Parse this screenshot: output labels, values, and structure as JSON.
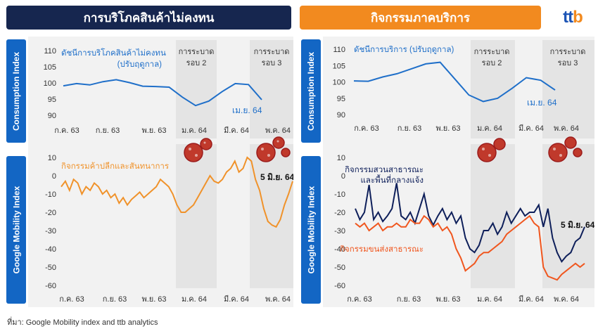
{
  "header": {
    "left_title": "การบริโภคสินค้าไม่คงทน",
    "right_title": "กิจกรรมภาคบริการ"
  },
  "logo": {
    "part1": "tt",
    "part2": "b"
  },
  "side_labels": {
    "consumption": "Consumption Index",
    "mobility": "Google Mobility Index"
  },
  "source": "ที่มา: Google Mobility index and ttb analytics",
  "colors": {
    "navy": "#16264f",
    "orange": "#f28a1f",
    "blue": "#1366c4",
    "line_blue": "#1f6fc9",
    "line_orange": "#f0922a",
    "line_navy": "#0e1f5a",
    "line_red": "#f0561e",
    "panel": "#f2f2f2",
    "shade": "#e4e4e4"
  },
  "chart_data": [
    {
      "id": "goods_consumption",
      "type": "line",
      "x_tick_labels": [
        "ก.ค. 63",
        "ก.ย. 63",
        "พ.ย. 63",
        "ม.ค. 64",
        "มี.ค. 64",
        "พ.ค. 64"
      ],
      "ylim": [
        90,
        110
      ],
      "y_ticks": [
        110,
        105,
        100,
        95,
        90
      ],
      "shaded_periods": [
        {
          "label_line1": "การระบาด",
          "label_line2": "รอบ 2"
        },
        {
          "label_line1": "การระบาด",
          "label_line2": "รอบ 3"
        }
      ],
      "series": [
        {
          "name": "ดัชนีการบริโภคสินค้าไม่คงทน\n(ปรับฤดูกาล)",
          "color": "#1f6fc9",
          "values": [
            99.1,
            99.8,
            99.4,
            100.4,
            101.0,
            100.1,
            99.0,
            98.9,
            98.7,
            95.6,
            93.0,
            94.4,
            97.3,
            99.8,
            99.5,
            94.8
          ]
        }
      ],
      "annotations": [
        {
          "text": "เม.ย. 64",
          "color": "#1f6fc9"
        }
      ]
    },
    {
      "id": "services_consumption",
      "type": "line",
      "x_tick_labels": [
        "ก.ค. 63",
        "ก.ย. 63",
        "พ.ย. 63",
        "ม.ค. 64",
        "มี.ค. 64",
        "พ.ค. 64"
      ],
      "ylim": [
        90,
        110
      ],
      "y_ticks": [
        110,
        105,
        100,
        95,
        90
      ],
      "shaded_periods": [
        {
          "label_line1": "การระบาด",
          "label_line2": "รอบ 2"
        },
        {
          "label_line1": "การระบาด",
          "label_line2": "รอบ 3"
        }
      ],
      "series": [
        {
          "name": "ดัชนีการบริการ (ปรับฤดูกาล)",
          "color": "#1f6fc9",
          "values": [
            100.3,
            100.2,
            101.5,
            102.5,
            104.0,
            105.5,
            106.0,
            101.0,
            96.0,
            94.0,
            95.0,
            98.0,
            101.3,
            100.5,
            97.5
          ]
        }
      ],
      "annotations": [
        {
          "text": "เม.ย. 64",
          "color": "#1f6fc9"
        }
      ]
    },
    {
      "id": "retail_mobility",
      "type": "line",
      "x_tick_labels": [
        "ก.ค. 63",
        "ก.ย. 63",
        "พ.ย. 63",
        "ม.ค. 64",
        "มี.ค. 64",
        "พ.ค. 64"
      ],
      "ylim": [
        -60,
        10
      ],
      "y_ticks": [
        10,
        0,
        -10,
        -20,
        -30,
        -40,
        -50,
        -60
      ],
      "series": [
        {
          "name": "กิจกรรมค้าปลีกและสันทนาการ",
          "color": "#f0922a",
          "values": [
            -6,
            -3,
            -8,
            -2,
            -4,
            -10,
            -6,
            -8,
            -4,
            -6,
            -10,
            -8,
            -12,
            -10,
            -15,
            -12,
            -16,
            -13,
            -11,
            -9,
            -12,
            -10,
            -8,
            -6,
            -2,
            -4,
            -6,
            -10,
            -16,
            -20,
            -20,
            -18,
            -16,
            -12,
            -8,
            -4,
            0,
            -3,
            -4,
            -2,
            2,
            4,
            8,
            2,
            4,
            10,
            8,
            -2,
            -8,
            -18,
            -25,
            -27,
            -28,
            -24,
            -16,
            -10,
            -3
          ]
        }
      ],
      "annotations": [
        {
          "text": "5 มิ.ย. 64",
          "color": "#111111"
        }
      ]
    },
    {
      "id": "public_mobility",
      "type": "line",
      "x_tick_labels": [
        "ก.ค. 63",
        "ก.ย. 63",
        "พ.ย. 63",
        "ม.ค. 64",
        "มี.ค. 64",
        "พ.ค. 64"
      ],
      "ylim": [
        -60,
        10
      ],
      "y_ticks": [
        10,
        0,
        -10,
        -20,
        -30,
        -40,
        -50,
        -60
      ],
      "series": [
        {
          "name": "กิจกรรมสวนสาธารณะ\nและพื้นที่กลางแจ้ง",
          "color": "#0e1f5a",
          "values": [
            -18,
            -24,
            -20,
            -5,
            -24,
            -20,
            -25,
            -22,
            -18,
            -4,
            -22,
            -24,
            -20,
            -26,
            -18,
            -10,
            -22,
            -27,
            -22,
            -18,
            -24,
            -20,
            -26,
            -22,
            -34,
            -40,
            -42,
            -38,
            -30,
            -30,
            -26,
            -32,
            -28,
            -20,
            -26,
            -22,
            -18,
            -22,
            -20,
            -20,
            -16,
            -28,
            -18,
            -34,
            -42,
            -47,
            -44,
            -42,
            -36,
            -34,
            -28
          ]
        },
        {
          "name": "กิจกรรมขนส่งสาธารณะ",
          "color": "#f0561e",
          "values": [
            -26,
            -28,
            -26,
            -30,
            -28,
            -26,
            -30,
            -28,
            -28,
            -26,
            -28,
            -28,
            -24,
            -26,
            -26,
            -22,
            -24,
            -28,
            -26,
            -30,
            -28,
            -32,
            -40,
            -45,
            -52,
            -50,
            -48,
            -44,
            -42,
            -42,
            -40,
            -38,
            -36,
            -32,
            -30,
            -28,
            -26,
            -24,
            -22,
            -26,
            -28,
            -50,
            -55,
            -56,
            -57,
            -54,
            -52,
            -50,
            -48,
            -50,
            -48
          ]
        }
      ],
      "annotations": [
        {
          "text": "5 มิ.ย. 64",
          "color": "#111111"
        }
      ]
    }
  ]
}
